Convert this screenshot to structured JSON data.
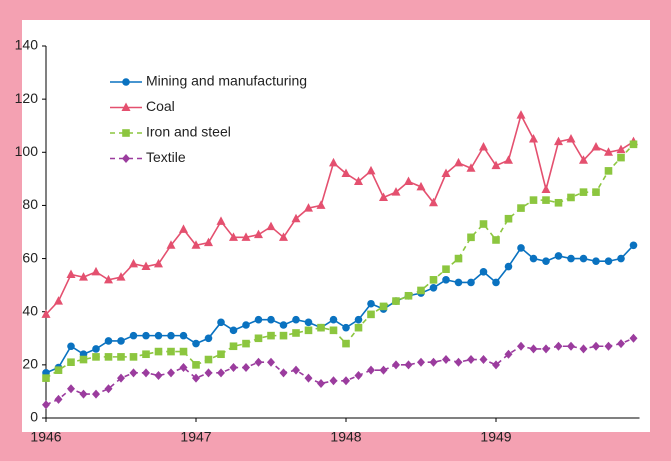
{
  "chart_data": {
    "type": "line",
    "categories": [
      "1946",
      null,
      null,
      null,
      null,
      null,
      null,
      null,
      null,
      null,
      null,
      null,
      "1947",
      null,
      null,
      null,
      null,
      null,
      null,
      null,
      null,
      null,
      null,
      null,
      "1948",
      null,
      null,
      null,
      null,
      null,
      null,
      null,
      null,
      null,
      null,
      null,
      "1949",
      null,
      null,
      null,
      null,
      null,
      null,
      null,
      null,
      null,
      null,
      null
    ],
    "series": [
      {
        "name": "Mining and manufacturing",
        "color": "#0a72c0",
        "marker": "circle",
        "dashed": false,
        "values": [
          17,
          19,
          27,
          24,
          26,
          29,
          29,
          31,
          31,
          31,
          31,
          31,
          28,
          30,
          36,
          33,
          35,
          37,
          37,
          35,
          37,
          36,
          34,
          37,
          34,
          37,
          43,
          41,
          44,
          46,
          47,
          49,
          52,
          51,
          51,
          55,
          51,
          57,
          64,
          60,
          59,
          61,
          60,
          60,
          59,
          59,
          60,
          65
        ]
      },
      {
        "name": "Coal",
        "color": "#e4506f",
        "marker": "triangle",
        "dashed": false,
        "values": [
          39,
          44,
          54,
          53,
          55,
          52,
          53,
          58,
          57,
          58,
          65,
          71,
          65,
          66,
          74,
          68,
          68,
          69,
          72,
          68,
          75,
          79,
          80,
          96,
          92,
          89,
          93,
          83,
          85,
          89,
          87,
          81,
          92,
          96,
          94,
          102,
          95,
          97,
          114,
          105,
          86,
          104,
          105,
          97,
          102,
          100,
          101,
          104
        ]
      },
      {
        "name": "Iron and steel",
        "color": "#8cc63f",
        "marker": "square",
        "dashed": true,
        "values": [
          15,
          18,
          21,
          22,
          23,
          23,
          23,
          23,
          24,
          25,
          25,
          25,
          20,
          22,
          24,
          27,
          28,
          30,
          31,
          31,
          32,
          33,
          34,
          33,
          28,
          34,
          39,
          42,
          44,
          46,
          48,
          52,
          56,
          60,
          68,
          73,
          67,
          75,
          79,
          82,
          82,
          81,
          83,
          85,
          85,
          93,
          98,
          103
        ]
      },
      {
        "name": "Textile",
        "color": "#9b3c9e",
        "marker": "diamond",
        "dashed": true,
        "values": [
          5,
          7,
          11,
          9,
          9,
          11,
          15,
          17,
          17,
          16,
          17,
          19,
          15,
          17,
          17,
          19,
          19,
          21,
          21,
          17,
          18,
          15,
          13,
          14,
          14,
          16,
          18,
          18,
          20,
          20,
          21,
          21,
          22,
          21,
          22,
          22,
          20,
          24,
          27,
          26,
          26,
          27,
          27,
          26,
          27,
          27,
          28,
          30
        ]
      }
    ],
    "ylim": [
      0,
      140
    ],
    "yticks": [
      0,
      20,
      40,
      60,
      80,
      100,
      120,
      140
    ],
    "grid": false,
    "legend": "upper left"
  }
}
